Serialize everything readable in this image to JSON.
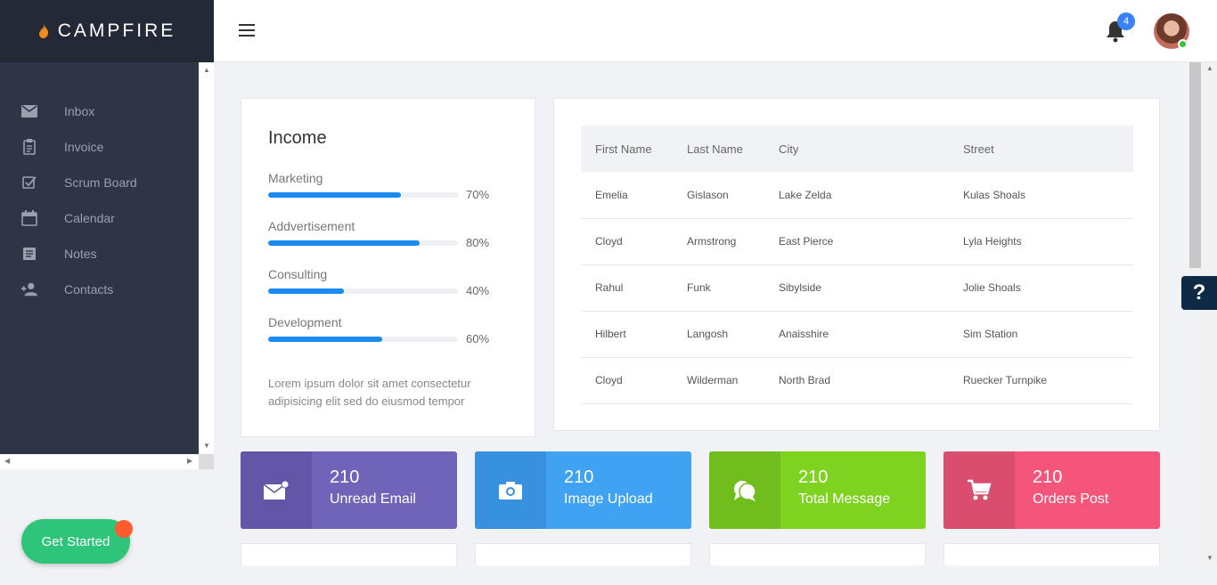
{
  "brand": {
    "name": "CAMPFIRE"
  },
  "sidebar": {
    "items": [
      {
        "label": "Inbox",
        "icon": "envelope-icon"
      },
      {
        "label": "Invoice",
        "icon": "clipboard-icon"
      },
      {
        "label": "Scrum Board",
        "icon": "checkbox-icon"
      },
      {
        "label": "Calendar",
        "icon": "calendar-icon"
      },
      {
        "label": "Notes",
        "icon": "notes-icon"
      },
      {
        "label": "Contacts",
        "icon": "add-person-icon"
      }
    ]
  },
  "header": {
    "notifications_count": "4"
  },
  "get_started": {
    "label": "Get Started"
  },
  "help": {
    "label": "?"
  },
  "income": {
    "title": "Income",
    "items": [
      {
        "label": "Marketing",
        "value": "70%",
        "fraction": 0.7
      },
      {
        "label": "Addvertisement",
        "value": "80%",
        "fraction": 0.8
      },
      {
        "label": "Consulting",
        "value": "40%",
        "fraction": 0.4
      },
      {
        "label": "Development",
        "value": "60%",
        "fraction": 0.6
      }
    ],
    "description": "Lorem ipsum dolor sit amet consectetur adipisicing elit sed do eiusmod tempor"
  },
  "table": {
    "headers": [
      "First Name",
      "Last Name",
      "City",
      "Street"
    ],
    "rows": [
      [
        "Emelia",
        "Gislason",
        "Lake Zelda",
        "Kulas Shoals"
      ],
      [
        "Cloyd",
        "Armstrong",
        "East Pierce",
        "Lyla Heights"
      ],
      [
        "Rahul",
        "Funk",
        "Sibylside",
        "Jolie Shoals"
      ],
      [
        "Hilbert",
        "Langosh",
        "Anaisshire",
        "Sim Station"
      ],
      [
        "Cloyd",
        "Wilderman",
        "North Brad",
        "Ruecker Turnpike"
      ]
    ]
  },
  "stats": [
    {
      "value": "210",
      "label": "Unread Email",
      "icon": "mail-icon",
      "color": "#7064b8",
      "icon_bg": "#6356a8"
    },
    {
      "value": "210",
      "label": "Image Upload",
      "icon": "camera-icon",
      "color": "#3fa2f3",
      "icon_bg": "#3791de"
    },
    {
      "value": "210",
      "label": "Total Message",
      "icon": "chat-icon",
      "color": "#7ed321",
      "icon_bg": "#71bd1d"
    },
    {
      "value": "210",
      "label": "Orders Post",
      "icon": "cart-icon",
      "color": "#f4567b",
      "icon_bg": "#d94d6e"
    }
  ],
  "colors": {
    "accent": "#1a8cf0",
    "sidebar": "#2f3546",
    "brand_bar": "#232936",
    "get_started": "#2ec57b"
  }
}
